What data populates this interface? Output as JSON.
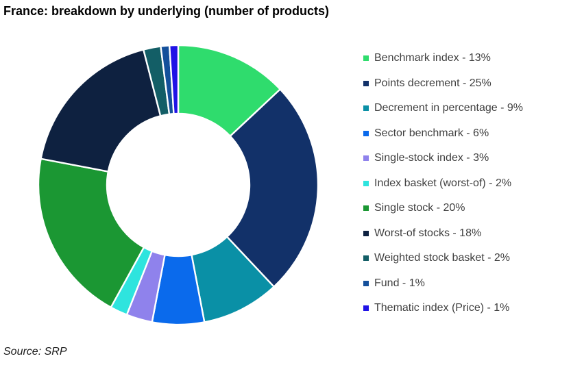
{
  "header": {
    "title": "France: breakdown by underlying (number of products)"
  },
  "footer": {
    "source": "Source: SRP"
  },
  "colors": {
    "background": "#ffffff",
    "title_text": "#000000",
    "legend_text": "#404040",
    "slice_separator": "#ffffff"
  },
  "chart_data": {
    "type": "pie",
    "subtype": "donut",
    "title": "France: breakdown by underlying (number of products)",
    "unit": "%",
    "legend_position": "right",
    "inner_radius_ratio": 0.51,
    "start_angle_deg": 0,
    "direction": "clockwise",
    "slices": [
      {
        "name": "Benchmark index",
        "value": 13,
        "label": "Benchmark index - 13%",
        "color": "#2FDC6D"
      },
      {
        "name": "Points decrement",
        "value": 25,
        "label": "Points decrement - 25%",
        "color": "#123169"
      },
      {
        "name": "Decrement in percentage",
        "value": 9,
        "label": "Decrement in percentage - 9%",
        "color": "#0A90A6"
      },
      {
        "name": "Sector benchmark",
        "value": 6,
        "label": "Sector benchmark - 6%",
        "color": "#0A6AEC"
      },
      {
        "name": "Single-stock index",
        "value": 3,
        "label": "Single-stock index - 3%",
        "color": "#8F82EC"
      },
      {
        "name": "Index basket (worst-of)",
        "value": 2,
        "label": "Index basket (worst-of) - 2%",
        "color": "#2EE4DE"
      },
      {
        "name": "Single stock",
        "value": 20,
        "label": "Single stock - 20%",
        "color": "#1B9733"
      },
      {
        "name": "Worst-of stocks",
        "value": 18,
        "label": "Worst-of stocks - 18%",
        "color": "#0E2140"
      },
      {
        "name": "Weighted stock basket",
        "value": 2,
        "label": "Weighted stock basket - 2%",
        "color": "#135E66"
      },
      {
        "name": "Fund",
        "value": 1,
        "label": "Fund - 1%",
        "color": "#14509B"
      },
      {
        "name": "Thematic index (Price)",
        "value": 1,
        "label": "Thematic index (Price) - 1%",
        "color": "#2013E6"
      }
    ]
  }
}
